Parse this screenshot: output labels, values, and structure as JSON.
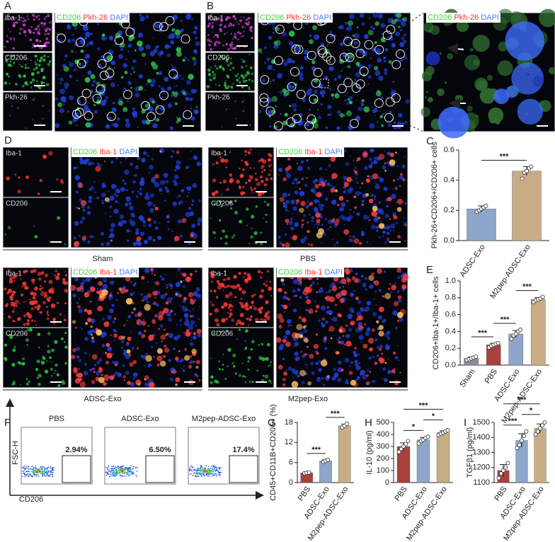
{
  "figure": {
    "top": [
      {
        "letter": "A",
        "insets": [
          "Iba-1",
          "CD206",
          "Pkh-26"
        ],
        "stain": [
          "CD206",
          "/",
          "Pkh-26",
          "/",
          "DAPI"
        ]
      },
      {
        "letter": "B",
        "insets": [
          "Iba-1",
          "CD206",
          "Pkh-26"
        ],
        "stain": [
          "CD206",
          "/",
          "Pkh-26",
          "/",
          "DAPI"
        ]
      }
    ],
    "zoom": {
      "stain": [
        "CD206",
        "/",
        "Pkh-26",
        "/",
        "DAPI"
      ]
    },
    "D": {
      "letter": "D",
      "conditions": [
        {
          "name": "Sham",
          "insets": [
            "Iba-1",
            "CD206"
          ],
          "stain": [
            "CD206",
            "/",
            "Iba-1",
            "/",
            "DAPI"
          ]
        },
        {
          "name": "PBS",
          "insets": [
            "Iba-1",
            "CD206"
          ],
          "stain": [
            "CD206",
            "/",
            "Iba-1",
            "/",
            "DAPI"
          ]
        },
        {
          "name": "ADSC-Exo",
          "insets": [
            "Iba-1",
            "CD206"
          ],
          "stain": [
            "CD206",
            "/",
            "Iba-1",
            "/",
            "DAPI"
          ]
        },
        {
          "name": "M2pep-Exo",
          "insets": [
            "Iba-1",
            "CD206"
          ],
          "stain": [
            "CD206",
            "/",
            "Iba-1",
            "/",
            "DAPI"
          ]
        }
      ]
    },
    "F": {
      "letter": "F",
      "y_label": "FSC-H",
      "x_label": "CD206",
      "plots": [
        {
          "title": "PBS",
          "gate": "2.94%"
        },
        {
          "title": "ADSC-Exo",
          "gate": "6.50%"
        },
        {
          "title": "M2pep-ADSC-Exo",
          "gate": "17.4%"
        }
      ]
    }
  },
  "chart_data": [
    {
      "type": "bar",
      "panel": "C",
      "y_label": "Pkh-26+CD206+/CD206+ cells",
      "categories": [
        "ADSC-Exo",
        "M2pep-ADSC-Exo"
      ],
      "values": [
        0.21,
        0.46
      ],
      "errors": [
        0.02,
        0.03
      ],
      "points": [
        [
          0.19,
          0.2,
          0.21,
          0.22,
          0.23
        ],
        [
          0.41,
          0.45,
          0.46,
          0.48,
          0.49
        ]
      ],
      "colors": [
        "#8ea6c9",
        "#c8ad84"
      ],
      "ylim": [
        0,
        0.6
      ],
      "yticks": [
        {
          "value": 0,
          "label": "0.0"
        },
        0.2,
        0.4,
        0.6
      ],
      "significance": [
        {
          "pair": [
            "ADSC-Exo",
            "M2pep-ADSC-Exo"
          ],
          "label": "***"
        }
      ]
    },
    {
      "type": "bar",
      "panel": "E",
      "y_label": "CD206+Iba-1+/Iba-1+ cells",
      "categories": [
        "Sham",
        "PBS",
        "ADSC-Exo",
        "M2pep-ADSC-Exo"
      ],
      "values": [
        0.08,
        0.24,
        0.37,
        0.78
      ],
      "errors": [
        0.015,
        0.02,
        0.04,
        0.02
      ],
      "points": [
        [
          0.06,
          0.07,
          0.08,
          0.09,
          0.1
        ],
        [
          0.21,
          0.23,
          0.24,
          0.25,
          0.26
        ],
        [
          0.31,
          0.35,
          0.37,
          0.4,
          0.42
        ],
        [
          0.75,
          0.77,
          0.78,
          0.79,
          0.81
        ]
      ],
      "colors": [
        "#8c8c9e",
        "#a8413f",
        "#8ea6c9",
        "#c8ad84"
      ],
      "ylim": [
        0,
        1
      ],
      "yticks": [
        {
          "value": 0,
          "label": "0.0"
        },
        0.2,
        0.4,
        0.6,
        0.8,
        {
          "value": 1,
          "label": "1.0"
        }
      ],
      "significance": [
        {
          "pair": [
            "Sham",
            "PBS"
          ],
          "label": "***"
        },
        {
          "pair": [
            "PBS",
            "ADSC-Exo"
          ],
          "label": "***"
        },
        {
          "pair": [
            "ADSC-Exo",
            "M2pep-ADSC-Exo"
          ],
          "label": "***"
        }
      ]
    },
    {
      "type": "bar",
      "panel": "G",
      "y_label": "CD45+CD11B+CD206+ (%)",
      "categories": [
        "PBS",
        "ADSC-Exo",
        "M2pep-ADSC-Exo"
      ],
      "values": [
        2.9,
        6.5,
        17.0
      ],
      "errors": [
        0.1,
        0.3,
        0.5
      ],
      "points": [
        [
          2.8,
          2.9,
          3.0
        ],
        [
          6.2,
          6.5,
          6.8
        ],
        [
          16.5,
          17.0,
          17.6
        ]
      ],
      "colors": [
        "#a8413f",
        "#8ea6c9",
        "#c8ad84"
      ],
      "ylim": [
        0,
        18
      ],
      "yticks": [
        0,
        6,
        12,
        18
      ],
      "significance": [
        {
          "pair": [
            "PBS",
            "ADSC-Exo"
          ],
          "label": "***"
        },
        {
          "pair": [
            "ADSC-Exo",
            "M2pep-ADSC-Exo"
          ],
          "label": "***"
        }
      ]
    },
    {
      "type": "bar",
      "panel": "H",
      "y_label": "IL-10  (pg/ml)",
      "categories": [
        "PBS",
        "ADSC-Exo",
        "M2pep-ADSC-Exo"
      ],
      "values": [
        300,
        355,
        415
      ],
      "errors": [
        30,
        20,
        15
      ],
      "points": [
        [
          255,
          280,
          300,
          320,
          345
        ],
        [
          325,
          345,
          355,
          370,
          380
        ],
        [
          395,
          405,
          415,
          425,
          435
        ]
      ],
      "colors": [
        "#a8413f",
        "#8ea6c9",
        "#c8ad84"
      ],
      "ylim": [
        0,
        500
      ],
      "yticks": [
        0,
        100,
        200,
        300,
        400,
        500
      ],
      "significance": [
        {
          "pair": [
            "PBS",
            "ADSC-Exo"
          ],
          "label": "*"
        },
        {
          "pair": [
            "ADSC-Exo",
            "M2pep-ADSC-Exo"
          ],
          "label": "*"
        },
        {
          "pair": [
            "PBS",
            "M2pep-ADSC-Exo"
          ],
          "label": "***"
        }
      ]
    },
    {
      "type": "bar",
      "panel": "I",
      "y_label": "TGFβ1  (pg/ml)",
      "categories": [
        "PBS",
        "ADSC-Exo",
        "M2pep-ADSC-Exo"
      ],
      "values": [
        1180,
        1380,
        1460
      ],
      "errors": [
        40,
        45,
        30
      ],
      "points": [
        [
          1130,
          1160,
          1180,
          1200,
          1230
        ],
        [
          1330,
          1350,
          1380,
          1410,
          1440
        ],
        [
          1420,
          1440,
          1460,
          1480,
          1500
        ]
      ],
      "colors": [
        "#a8413f",
        "#8ea6c9",
        "#c8ad84"
      ],
      "ylim": [
        1100,
        1500
      ],
      "yticks": [
        1100,
        1200,
        1300,
        1400,
        1500
      ],
      "significance": [
        {
          "pair": [
            "PBS",
            "ADSC-Exo"
          ],
          "label": "***"
        },
        {
          "pair": [
            "ADSC-Exo",
            "M2pep-ADSC-Exo"
          ],
          "label": "*"
        },
        {
          "pair": [
            "PBS",
            "M2pep-ADSC-Exo"
          ],
          "label": "***"
        }
      ]
    }
  ]
}
